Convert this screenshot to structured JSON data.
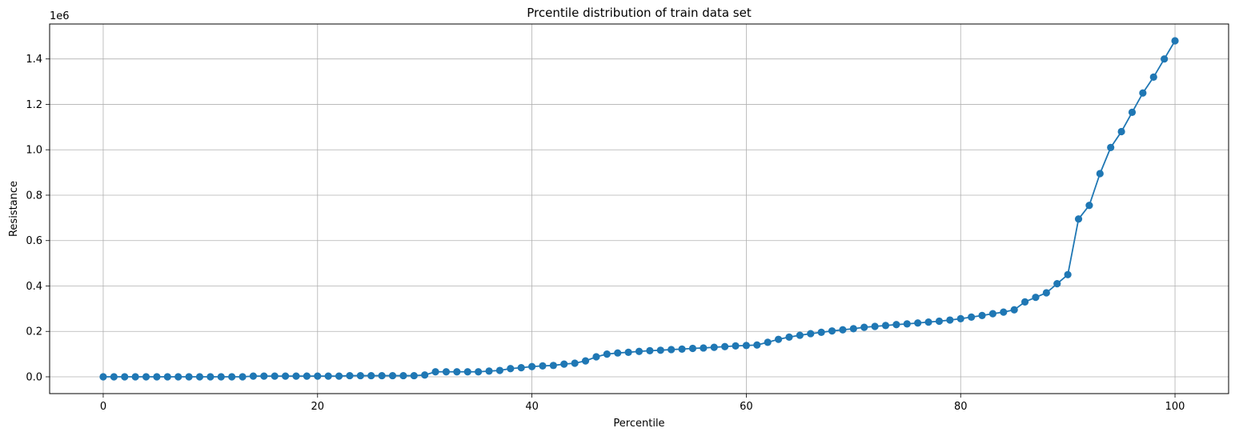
{
  "chart_data": {
    "type": "line",
    "title": "Prcentile distribution of train data set",
    "xlabel": "Percentile",
    "ylabel": "Resistance",
    "y_offset_label": "1e6",
    "y_scale_factor": 1000000,
    "xlim": [
      -5,
      105
    ],
    "ylim": [
      -0.074,
      1.554
    ],
    "x_ticks": [
      0,
      20,
      40,
      60,
      80,
      100
    ],
    "y_ticks": [
      0.0,
      0.2,
      0.4,
      0.6,
      0.8,
      1.0,
      1.2,
      1.4
    ],
    "x_tick_labels": [
      "0",
      "20",
      "40",
      "60",
      "80",
      "100"
    ],
    "y_tick_labels": [
      "0.0",
      "0.2",
      "0.4",
      "0.6",
      "0.8",
      "1.0",
      "1.2",
      "1.4"
    ],
    "grid": true,
    "line_color": "#1f77b4",
    "marker": "circle",
    "series": [
      {
        "x": [
          0,
          1,
          2,
          3,
          4,
          5,
          6,
          7,
          8,
          9,
          10,
          11,
          12,
          13,
          14,
          15,
          16,
          17,
          18,
          19,
          20,
          21,
          22,
          23,
          24,
          25,
          26,
          27,
          28,
          29,
          30,
          31,
          32,
          33,
          34,
          35,
          36,
          37,
          38,
          39,
          40,
          41,
          42,
          43,
          44,
          45,
          46,
          47,
          48,
          49,
          50,
          51,
          52,
          53,
          54,
          55,
          56,
          57,
          58,
          59,
          60,
          61,
          62,
          63,
          64,
          65,
          66,
          67,
          68,
          69,
          70,
          71,
          72,
          73,
          74,
          75,
          76,
          77,
          78,
          79,
          80,
          81,
          82,
          83,
          84,
          85,
          86,
          87,
          88,
          89,
          90,
          91,
          92,
          93,
          94,
          95,
          96,
          97,
          98,
          99,
          100
        ],
        "y": [
          0.0,
          0.0,
          0.0,
          0.0,
          0.0,
          0.0,
          0.0,
          0.0,
          0.0,
          0.0,
          0.0,
          0.0,
          0.0,
          0.0,
          0.003,
          0.003,
          0.003,
          0.003,
          0.003,
          0.003,
          0.003,
          0.003,
          0.003,
          0.005,
          0.005,
          0.005,
          0.005,
          0.005,
          0.005,
          0.005,
          0.008,
          0.022,
          0.022,
          0.022,
          0.022,
          0.022,
          0.025,
          0.028,
          0.036,
          0.04,
          0.045,
          0.048,
          0.05,
          0.056,
          0.06,
          0.07,
          0.088,
          0.1,
          0.105,
          0.108,
          0.112,
          0.115,
          0.117,
          0.12,
          0.122,
          0.125,
          0.127,
          0.13,
          0.133,
          0.136,
          0.138,
          0.14,
          0.152,
          0.165,
          0.175,
          0.183,
          0.19,
          0.196,
          0.202,
          0.207,
          0.212,
          0.218,
          0.222,
          0.226,
          0.23,
          0.233,
          0.237,
          0.241,
          0.245,
          0.25,
          0.256,
          0.263,
          0.27,
          0.278,
          0.285,
          0.295,
          0.33,
          0.35,
          0.37,
          0.41,
          0.45,
          0.695,
          0.755,
          0.895,
          1.01,
          1.08,
          1.165,
          1.25,
          1.32,
          1.4,
          1.48
        ]
      }
    ]
  }
}
